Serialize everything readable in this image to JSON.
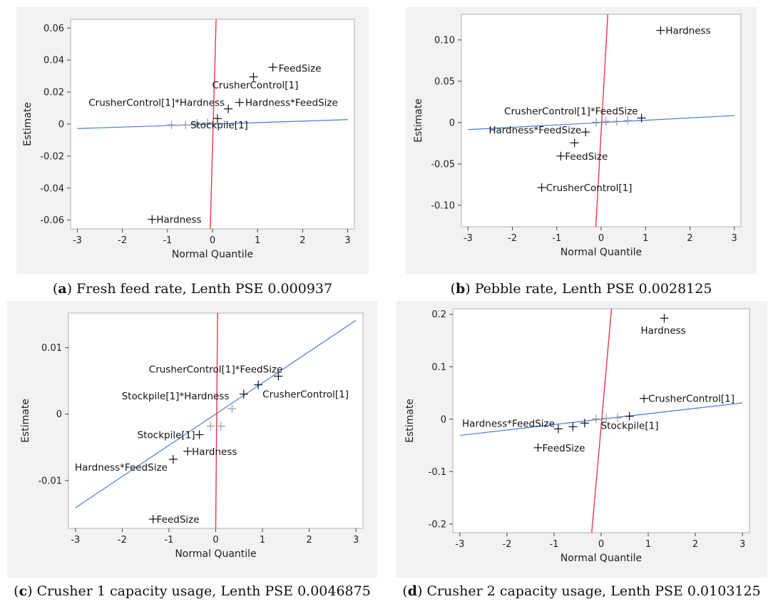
{
  "chart_data": [
    {
      "type": "scatter",
      "letter": "a",
      "caption": "Fresh feed rate, Lenth PSE 0.000937",
      "xlabel": "Normal Quantile",
      "ylabel": "Estimate",
      "xlim": [
        -3.15,
        3.15
      ],
      "ylim": [
        -0.0655,
        0.0655
      ],
      "xticks": [
        -3,
        -2,
        -1,
        0,
        1,
        2,
        3
      ],
      "yticks": [
        -0.06,
        -0.04,
        -0.02,
        0,
        0.02,
        0.04,
        0.06
      ],
      "ytick_labels": [
        "-0.06",
        "-0.04",
        "-0.02",
        "0",
        "0.02",
        "0.04",
        "0.06"
      ],
      "grid": false,
      "blue_line": [
        [
          -3,
          -0.0028
        ],
        [
          3,
          0.0028
        ]
      ],
      "red_line": [
        [
          -0.05,
          -0.0655
        ],
        [
          0.08,
          0.0655
        ]
      ],
      "points": [
        {
          "x": -1.34,
          "y": -0.0595,
          "label": "Hardness",
          "strong": true
        },
        {
          "x": -0.91,
          "y": -0.0005,
          "label": "",
          "strong": false
        },
        {
          "x": -0.6,
          "y": -0.0005,
          "label": "",
          "strong": false
        },
        {
          "x": -0.35,
          "y": 0.0005,
          "label": "",
          "strong": false
        },
        {
          "x": -0.11,
          "y": 0.0008,
          "label": "",
          "strong": false
        },
        {
          "x": 0.11,
          "y": 0.0035,
          "label": "Stockpile[1]",
          "strong": true
        },
        {
          "x": 0.35,
          "y": 0.0095,
          "label": "CrusherControl[1]*Hardness",
          "strong": true
        },
        {
          "x": 0.6,
          "y": 0.0135,
          "label": "Hardness*FeedSize",
          "strong": true
        },
        {
          "x": 0.91,
          "y": 0.0295,
          "label": "CrusherControl[1]",
          "strong": true
        },
        {
          "x": 1.34,
          "y": 0.0355,
          "label": "FeedSize",
          "strong": true
        }
      ]
    },
    {
      "type": "scatter",
      "letter": "b",
      "caption": "Pebble rate, Lenth PSE 0.0028125",
      "xlabel": "Normal Quantile",
      "ylabel": "Estimate",
      "xlim": [
        -3.15,
        3.15
      ],
      "ylim": [
        -0.126,
        0.131
      ],
      "xticks": [
        -3,
        -2,
        -1,
        0,
        1,
        2,
        3
      ],
      "yticks": [
        -0.1,
        -0.05,
        0,
        0.05,
        0.1
      ],
      "ytick_labels": [
        "-0.10",
        "-0.05",
        "0",
        "0.05",
        "0.10"
      ],
      "grid": false,
      "blue_line": [
        [
          -3,
          -0.0085
        ],
        [
          3,
          0.0085
        ]
      ],
      "red_line": [
        [
          -0.12,
          -0.126
        ],
        [
          0.15,
          0.131
        ]
      ],
      "points": [
        {
          "x": -1.34,
          "y": -0.0785,
          "label": "CrusherControl[1]",
          "strong": true
        },
        {
          "x": -0.91,
          "y": -0.0405,
          "label": "FeedSize",
          "strong": true
        },
        {
          "x": -0.6,
          "y": -0.0245,
          "label": "",
          "strong": true
        },
        {
          "x": -0.35,
          "y": -0.0115,
          "label": "Hardness*FeedSize",
          "strong": true
        },
        {
          "x": -0.11,
          "y": 0.0005,
          "label": "",
          "strong": false
        },
        {
          "x": 0.11,
          "y": 0.0015,
          "label": "",
          "strong": false
        },
        {
          "x": 0.35,
          "y": 0.0015,
          "label": "",
          "strong": false
        },
        {
          "x": 0.6,
          "y": 0.0025,
          "label": "",
          "strong": false
        },
        {
          "x": 0.91,
          "y": 0.0055,
          "label": "CrusherControl[1]*FeedSize",
          "strong": true
        },
        {
          "x": 1.34,
          "y": 0.1115,
          "label": "Hardness",
          "strong": true
        }
      ]
    },
    {
      "type": "scatter",
      "letter": "c",
      "caption": "Crusher 1 capacity usage, Lenth PSE 0.0046875",
      "xlabel": "Normal Quantile",
      "ylabel": "Estimate",
      "xlim": [
        -3.15,
        3.15
      ],
      "ylim": [
        -0.0172,
        0.0152
      ],
      "xticks": [
        -3,
        -2,
        -1,
        0,
        1,
        2,
        3
      ],
      "yticks": [
        -0.01,
        0,
        0.01
      ],
      "ytick_labels": [
        "-0.01",
        "0",
        "0.01"
      ],
      "grid": false,
      "blue_line": [
        [
          -3,
          -0.0141
        ],
        [
          3,
          0.0141
        ]
      ],
      "red_line": [
        [
          0.0,
          -0.0172
        ],
        [
          0.04,
          0.0152
        ]
      ],
      "points": [
        {
          "x": -1.34,
          "y": -0.0158,
          "label": "FeedSize",
          "strong": true
        },
        {
          "x": -0.91,
          "y": -0.0068,
          "label": "Hardness*FeedSize",
          "strong": true
        },
        {
          "x": -0.6,
          "y": -0.0056,
          "label": "Hardness",
          "strong": true
        },
        {
          "x": -0.35,
          "y": -0.0031,
          "label": "Stockpile[1]",
          "strong": true
        },
        {
          "x": -0.11,
          "y": -0.0018,
          "label": "",
          "strong": false
        },
        {
          "x": 0.11,
          "y": -0.0018,
          "label": "",
          "strong": false
        },
        {
          "x": 0.35,
          "y": 0.0008,
          "label": "Stockpile[1]*Hardness",
          "strong": false
        },
        {
          "x": 0.6,
          "y": 0.003,
          "label": "",
          "strong": true
        },
        {
          "x": 0.91,
          "y": 0.0044,
          "label": "CrusherControl[1]",
          "strong": true
        },
        {
          "x": 1.34,
          "y": 0.0057,
          "label": "CrusherControl[1]*FeedSize",
          "strong": true
        }
      ]
    },
    {
      "type": "scatter",
      "letter": "d",
      "caption": "Crusher 2 capacity usage, Lenth PSE 0.0103125",
      "xlabel": "Normal Quantile",
      "ylabel": "Estimate",
      "xlim": [
        -3.15,
        3.15
      ],
      "ylim": [
        -0.2165,
        0.2105
      ],
      "xticks": [
        -3,
        -2,
        -1,
        0,
        1,
        2,
        3
      ],
      "yticks": [
        -0.2,
        -0.1,
        0,
        0.1,
        0.2
      ],
      "ytick_labels": [
        "-0.2",
        "-0.1",
        "0",
        "0.1",
        "0.2"
      ],
      "grid": false,
      "blue_line": [
        [
          -3,
          -0.031
        ],
        [
          3,
          0.031
        ]
      ],
      "red_line": [
        [
          -0.2,
          -0.2165
        ],
        [
          0.22,
          0.2105
        ]
      ],
      "points": [
        {
          "x": -1.34,
          "y": -0.0545,
          "label": "FeedSize",
          "strong": true
        },
        {
          "x": -0.91,
          "y": -0.0185,
          "label": "Hardness*FeedSize",
          "strong": true
        },
        {
          "x": -0.6,
          "y": -0.0145,
          "label": "",
          "strong": true
        },
        {
          "x": -0.35,
          "y": -0.0075,
          "label": "",
          "strong": true
        },
        {
          "x": -0.11,
          "y": 0.0005,
          "label": "",
          "strong": false
        },
        {
          "x": 0.11,
          "y": 0.0015,
          "label": "",
          "strong": false
        },
        {
          "x": 0.35,
          "y": 0.0025,
          "label": "",
          "strong": false
        },
        {
          "x": 0.6,
          "y": 0.0055,
          "label": "Stockpile[1]",
          "strong": true
        },
        {
          "x": 0.91,
          "y": 0.0395,
          "label": "CrusherControl[1]",
          "strong": true
        },
        {
          "x": 1.34,
          "y": 0.1925,
          "label": "Hardness",
          "strong": true
        }
      ]
    }
  ],
  "colors": {
    "blue_line": "#4a78e0",
    "red_line": "#e23a4f",
    "strong_point": "#111111",
    "weak_point": "#9a9a9a",
    "frame": "#b0b0b0",
    "panel_bg": "#f2f2f2"
  }
}
